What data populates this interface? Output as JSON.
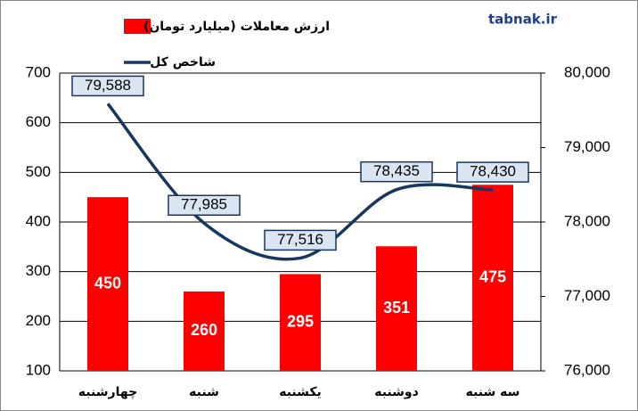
{
  "chart_data": {
    "type": "combo",
    "source": "tabnak.ir",
    "categories": [
      "چهارشنبه",
      "شنبه",
      "یکشنبه",
      "دوشنبه",
      "سه شنبه"
    ],
    "series": [
      {
        "name": "ارزش معاملات (میلیارد تومان)",
        "type": "bar",
        "color": "#ff0000",
        "values": [
          450,
          260,
          295,
          351,
          475
        ]
      },
      {
        "name": "شاخص کل",
        "type": "line",
        "axis": "y2",
        "color": "#17375e",
        "values": [
          79588,
          77985,
          77516,
          78435,
          78430
        ],
        "value_labels": [
          "79,588",
          "77,985",
          "77,516",
          "78,435",
          "78,430"
        ]
      }
    ],
    "ylim": [
      100,
      700
    ],
    "yticks": [
      100,
      200,
      300,
      400,
      500,
      600,
      700
    ],
    "y2lim": [
      76000,
      80000
    ],
    "y2ticks": [
      {
        "value": 76000,
        "label": "76,000"
      },
      {
        "value": 77000,
        "label": "77,000"
      },
      {
        "value": 78000,
        "label": "78,000"
      },
      {
        "value": 79000,
        "label": "79,000"
      },
      {
        "value": 80000,
        "label": "80,000"
      }
    ],
    "grid": true
  }
}
